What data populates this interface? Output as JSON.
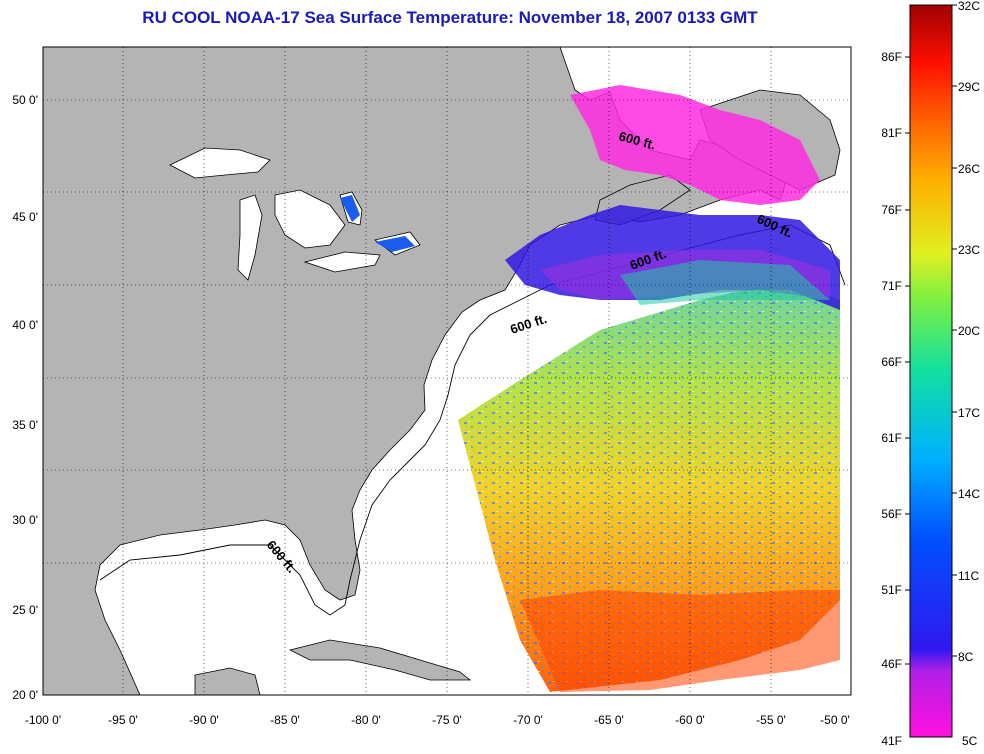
{
  "title": "RU COOL  NOAA-17  Sea Surface Temperature:  November 18, 2007 0133 GMT",
  "map": {
    "lon_labels": [
      "-100 0'",
      "-95 0'",
      "-90 0'",
      "-85 0'",
      "-80 0'",
      "-75 0'",
      "-70 0'",
      "-65 0'",
      "-60 0'",
      "-55 0'",
      "-50 0'"
    ],
    "lat_labels": [
      "50 0'",
      "45 0'",
      "40 0'",
      "35 0'",
      "30 0'",
      "25 0'",
      "20 0'"
    ],
    "contour_label": "600 ft.",
    "colors": {
      "land": "#b4b4b4",
      "water": "#ffffff",
      "coast": "#000000",
      "title": "#1a1ab4"
    }
  },
  "colorbar": {
    "fahrenheit": [
      "86F",
      "81F",
      "76F",
      "71F",
      "66F",
      "61F",
      "56F",
      "51F",
      "46F",
      "41F"
    ],
    "celsius": [
      "32C",
      "29C",
      "26C",
      "23C",
      "20C",
      "17C",
      "14C",
      "11C",
      "8C",
      "5C"
    ],
    "range_c": [
      5,
      32
    ]
  }
}
